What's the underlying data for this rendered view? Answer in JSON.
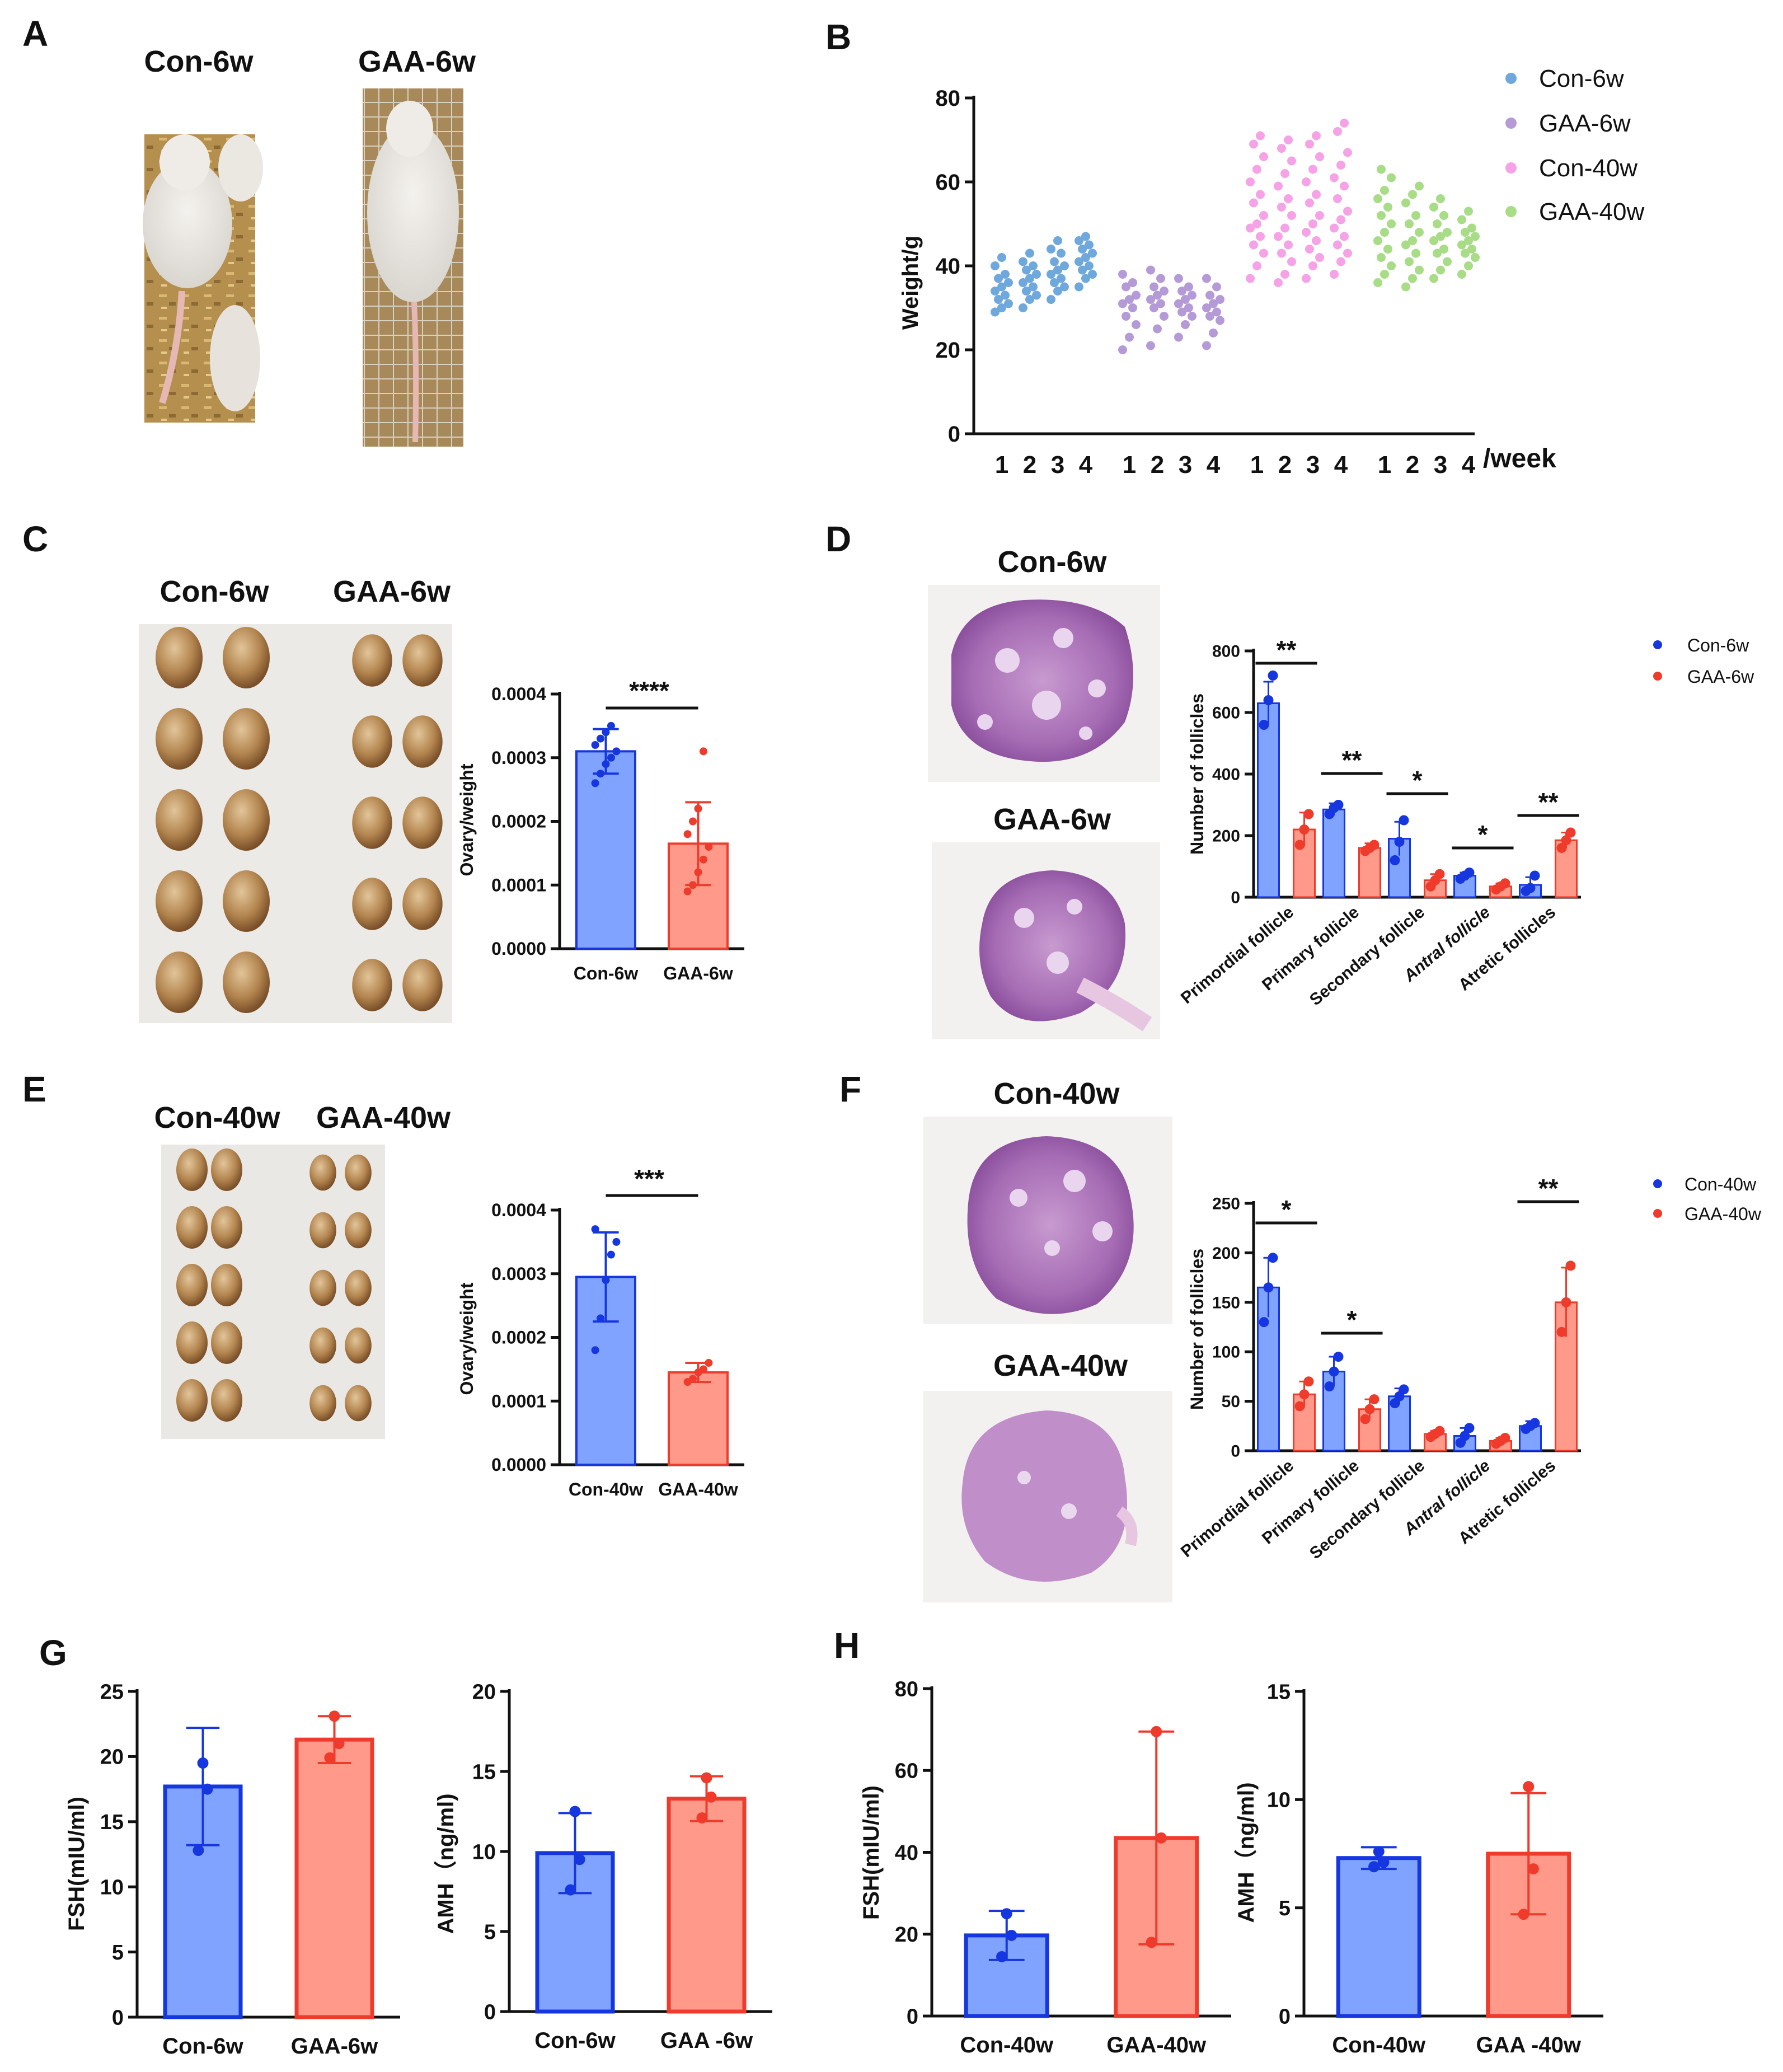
{
  "panel_labels": [
    "A",
    "B",
    "C",
    "D",
    "E",
    "F",
    "G",
    "H"
  ],
  "colors": {
    "con_6w": "#6fa8dc",
    "gaa_6w": "#b49bd8",
    "con_40w": "#f5a3e6",
    "gaa_40w": "#a8dc86",
    "blue_fill": "#7fa3ff",
    "blue_edge": "#1636e0",
    "red_fill": "#ff9a8a",
    "red_edge": "#ef3b2c"
  },
  "panel_A": {
    "labels": [
      "Con-6w",
      "GAA-6w"
    ]
  },
  "panel_C": {
    "labels": [
      "Con-6w",
      "GAA-6w"
    ]
  },
  "panel_D": {
    "image_labels": [
      "Con-6w",
      "GAA-6w"
    ]
  },
  "panel_E": {
    "labels": [
      "Con-40w",
      "GAA-40w"
    ]
  },
  "panel_F": {
    "image_labels": [
      "Con-40w",
      "GAA-40w"
    ]
  },
  "chart_data": [
    {
      "id": "B",
      "type": "scatter",
      "title": "",
      "ylabel": "Weight/g",
      "xlabel": "/week",
      "ylim": [
        0,
        80
      ],
      "yticks": [
        0,
        20,
        40,
        60,
        80
      ],
      "xticks": [
        "1",
        "2",
        "3",
        "4",
        "1",
        "2",
        "3",
        "4",
        "1",
        "2",
        "3",
        "4",
        "1",
        "2",
        "3",
        "4"
      ],
      "legend": [
        "Con-6w",
        "GAA-6w",
        "Con-40w",
        "GAA-40w"
      ],
      "series": [
        {
          "name": "Con-6w",
          "weeks": [
            [
              29,
              30,
              31,
              32,
              33,
              34,
              35,
              36,
              37,
              38,
              40,
              42
            ],
            [
              30,
              32,
              33,
              34,
              35,
              36,
              37,
              38,
              39,
              40,
              41,
              43
            ],
            [
              32,
              34,
              35,
              36,
              37,
              38,
              39,
              40,
              41,
              43,
              44,
              46
            ],
            [
              35,
              37,
              38,
              39,
              40,
              41,
              42,
              43,
              44,
              45,
              46,
              47
            ]
          ]
        },
        {
          "name": "GAA-6w",
          "weeks": [
            [
              20,
              23,
              26,
              28,
              30,
              31,
              32,
              33,
              35,
              36,
              38
            ],
            [
              21,
              25,
              28,
              30,
              31,
              32,
              33,
              34,
              35,
              37,
              39
            ],
            [
              23,
              26,
              28,
              29,
              30,
              31,
              32,
              33,
              34,
              35,
              37
            ],
            [
              21,
              24,
              27,
              28,
              29,
              30,
              31,
              32,
              33,
              35,
              37
            ]
          ]
        },
        {
          "name": "Con-40w",
          "weeks": [
            [
              37,
              40,
              43,
              45,
              47,
              49,
              50,
              52,
              55,
              57,
              60,
              63,
              66,
              69,
              71
            ],
            [
              36,
              38,
              41,
              43,
              45,
              47,
              49,
              52,
              54,
              56,
              59,
              62,
              65,
              68,
              70
            ],
            [
              37,
              40,
              42,
              44,
              46,
              48,
              50,
              52,
              55,
              57,
              60,
              63,
              66,
              69,
              71
            ],
            [
              38,
              41,
              43,
              45,
              47,
              49,
              51,
              53,
              56,
              59,
              61,
              64,
              67,
              72,
              74
            ]
          ]
        },
        {
          "name": "GAA-40w",
          "weeks": [
            [
              36,
              38,
              40,
              42,
              44,
              46,
              48,
              50,
              52,
              54,
              56,
              58,
              61,
              63
            ],
            [
              35,
              37,
              39,
              41,
              43,
              45,
              46,
              48,
              50,
              52,
              55,
              57,
              59
            ],
            [
              37,
              39,
              41,
              43,
              44,
              46,
              47,
              48,
              50,
              52,
              54,
              56
            ],
            [
              38,
              40,
              42,
              43,
              44,
              45,
              46,
              47,
              48,
              49,
              51,
              53
            ]
          ]
        }
      ]
    },
    {
      "id": "C",
      "type": "bar",
      "categories": [
        "Con-6w",
        "GAA-6w"
      ],
      "values": [
        0.00031,
        0.000165
      ],
      "errors": [
        3.5e-05,
        6.5e-05
      ],
      "points": [
        [
          0.00026,
          0.000275,
          0.00029,
          0.0003,
          0.00031,
          0.00032,
          0.00033,
          0.00034,
          0.00035
        ],
        [
          9e-05,
          0.0001,
          0.00012,
          0.00014,
          0.00016,
          0.00018,
          0.0002,
          0.00022,
          0.00031
        ]
      ],
      "ylabel": "Ovary/weight",
      "ylim": [
        0,
        0.0004
      ],
      "yticks": [
        "0.0000",
        "0.0001",
        "0.0002",
        "0.0003",
        "0.0004"
      ],
      "significance": "****"
    },
    {
      "id": "D",
      "type": "bar",
      "categories": [
        "Primordial follicle",
        "Primary follicle",
        "Secondary follicle",
        "Antral follicle",
        "Atretic follicles"
      ],
      "series": [
        {
          "name": "Con-6w",
          "values": [
            630,
            285,
            190,
            70,
            40
          ],
          "errors": [
            70,
            20,
            55,
            10,
            25
          ],
          "points": [
            [
              560,
              640,
              720
            ],
            [
              270,
              290,
              300
            ],
            [
              120,
              180,
              250
            ],
            [
              60,
              70,
              80
            ],
            [
              20,
              30,
              70
            ]
          ]
        },
        {
          "name": "GAA-6w",
          "values": [
            220,
            160,
            55,
            35,
            185
          ],
          "errors": [
            55,
            15,
            20,
            10,
            25
          ],
          "points": [
            [
              170,
              220,
              270
            ],
            [
              150,
              160,
              170
            ],
            [
              35,
              55,
              75
            ],
            [
              25,
              35,
              45
            ],
            [
              160,
              185,
              210
            ]
          ]
        }
      ],
      "ylabel": "Number of follicles",
      "ylim": [
        0,
        800
      ],
      "yticks": [
        0,
        200,
        400,
        600,
        800
      ],
      "significance": [
        "**",
        "**",
        "*",
        "*",
        "**"
      ]
    },
    {
      "id": "E",
      "type": "bar",
      "categories": [
        "Con-40w",
        "GAA-40w"
      ],
      "values": [
        0.000295,
        0.000145
      ],
      "errors": [
        7e-05,
        1.5e-05
      ],
      "points": [
        [
          0.00018,
          0.00023,
          0.00029,
          0.00033,
          0.00035,
          0.00037
        ],
        [
          0.00013,
          0.000135,
          0.000145,
          0.00015,
          0.00016
        ]
      ],
      "ylabel": "Ovary/weight",
      "ylim": [
        0,
        0.0004
      ],
      "yticks": [
        "0.0000",
        "0.0001",
        "0.0002",
        "0.0003",
        "0.0004"
      ],
      "significance": "***"
    },
    {
      "id": "F",
      "type": "bar",
      "categories": [
        "Primordial follicle",
        "Primary follicle",
        "Secondary follicle",
        "Antral follicle",
        "Atretic follicles"
      ],
      "series": [
        {
          "name": "Con-40w",
          "values": [
            165,
            80,
            55,
            15,
            25
          ],
          "errors": [
            30,
            15,
            8,
            8,
            5
          ],
          "points": [
            [
              130,
              165,
              195
            ],
            [
              65,
              80,
              95
            ],
            [
              48,
              55,
              62
            ],
            [
              8,
              15,
              23
            ],
            [
              22,
              25,
              28
            ]
          ]
        },
        {
          "name": "GAA-40w",
          "values": [
            57,
            42,
            17,
            10,
            150
          ],
          "errors": [
            13,
            10,
            3,
            3,
            35
          ],
          "points": [
            [
              45,
              57,
              70
            ],
            [
              32,
              42,
              52
            ],
            [
              14,
              17,
              20
            ],
            [
              7,
              10,
              13
            ],
            [
              120,
              150,
              187
            ]
          ]
        }
      ],
      "ylabel": "Number of follicles",
      "ylim": [
        0,
        250
      ],
      "yticks": [
        0,
        50,
        100,
        150,
        200,
        250
      ],
      "significance": [
        "*",
        "*",
        "",
        "",
        "**"
      ]
    },
    {
      "id": "G1",
      "type": "bar",
      "categories": [
        "Con-6w",
        "GAA-6w"
      ],
      "values": [
        17.7,
        21.3
      ],
      "errors": [
        4.5,
        1.8
      ],
      "points": [
        [
          12.8,
          17.5,
          19.5
        ],
        [
          19.9,
          21.0,
          23.1
        ]
      ],
      "ylabel": "FSH(mIU/ml)",
      "ylim": [
        0,
        25
      ],
      "yticks": [
        0,
        5,
        10,
        15,
        20,
        25
      ]
    },
    {
      "id": "G2",
      "type": "bar",
      "categories": [
        "Con-6w",
        "GAA -6w"
      ],
      "values": [
        9.9,
        13.3
      ],
      "errors": [
        2.5,
        1.4
      ],
      "points": [
        [
          7.6,
          9.5,
          12.5
        ],
        [
          12.1,
          13.4,
          14.6
        ]
      ],
      "ylabel": "AMH（ng/ml)",
      "ylim": [
        0,
        20
      ],
      "yticks": [
        0,
        5,
        10,
        15,
        20
      ]
    },
    {
      "id": "H1",
      "type": "bar",
      "categories": [
        "Con-40w",
        "GAA-40w"
      ],
      "values": [
        19.7,
        43.5
      ],
      "errors": [
        6.0,
        26.0
      ],
      "points": [
        [
          14.5,
          19.7,
          25.0
        ],
        [
          18.0,
          43.5,
          69.5
        ]
      ],
      "ylabel": "FSH(mIU/ml)",
      "ylim": [
        0,
        80
      ],
      "yticks": [
        0,
        20,
        40,
        60,
        80
      ]
    },
    {
      "id": "H2",
      "type": "bar",
      "categories": [
        "Con-40w",
        "GAA -40w"
      ],
      "values": [
        7.3,
        7.5
      ],
      "errors": [
        0.5,
        2.8
      ],
      "points": [
        [
          6.9,
          7.1,
          7.6
        ],
        [
          4.7,
          6.8,
          10.6
        ]
      ],
      "ylabel": "AMH（ng/ml)",
      "ylim": [
        0,
        15
      ],
      "yticks": [
        0,
        5,
        10,
        15
      ]
    }
  ]
}
